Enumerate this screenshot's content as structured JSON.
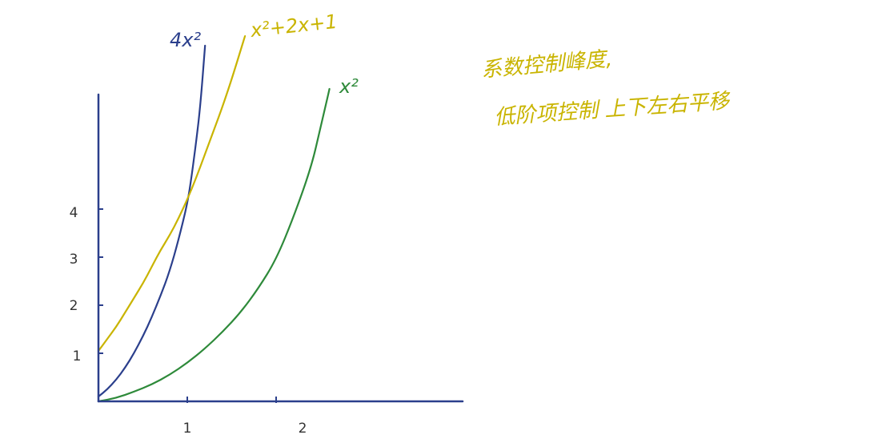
{
  "chart_data": {
    "type": "line",
    "title": "",
    "xlabel": "",
    "ylabel": "",
    "x_ticks": [
      "1",
      "2"
    ],
    "y_ticks": [
      "1",
      "2",
      "3",
      "4"
    ],
    "xlim": [
      0,
      3.3
    ],
    "ylim": [
      0,
      6.5
    ],
    "series": [
      {
        "name": "4x²",
        "color": "#2b3f8c",
        "x": [
          0.0,
          0.1,
          0.2,
          0.3,
          0.4,
          0.5,
          0.6,
          0.7,
          0.8,
          0.9,
          1.0,
          1.05,
          1.1,
          1.15,
          1.2
        ],
        "y": [
          0.1,
          0.25,
          0.45,
          0.7,
          1.0,
          1.35,
          1.75,
          2.2,
          2.7,
          3.35,
          4.1,
          4.7,
          5.4,
          6.2,
          7.4
        ]
      },
      {
        "name": "x²+2x+1",
        "color": "#c9b400",
        "x": [
          0.0,
          0.1,
          0.2,
          0.3,
          0.4,
          0.5,
          0.6,
          0.7,
          0.8,
          0.9,
          1.0,
          1.1,
          1.2,
          1.3,
          1.4,
          1.5,
          1.65
        ],
        "y": [
          1.05,
          1.3,
          1.55,
          1.85,
          2.15,
          2.45,
          2.8,
          3.15,
          3.45,
          3.8,
          4.2,
          4.65,
          5.15,
          5.65,
          6.15,
          6.7,
          7.6
        ]
      },
      {
        "name": "x²",
        "color": "#2e8a3a",
        "x": [
          0.0,
          0.2,
          0.4,
          0.6,
          0.8,
          1.0,
          1.2,
          1.4,
          1.6,
          1.8,
          2.0,
          2.2,
          2.4,
          2.5,
          2.6
        ],
        "y": [
          0.0,
          0.07,
          0.2,
          0.35,
          0.55,
          0.8,
          1.1,
          1.45,
          1.85,
          2.35,
          2.95,
          3.85,
          4.9,
          5.7,
          6.5
        ]
      }
    ],
    "annotations": [
      "系数控制峰度,",
      "低阶项控制 上下左右平移"
    ]
  }
}
